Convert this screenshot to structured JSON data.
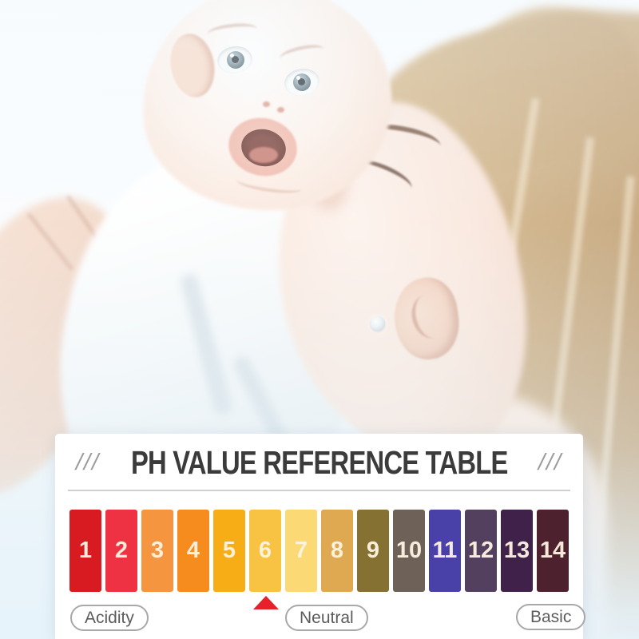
{
  "background_color": "#e7f3fa",
  "panel": {
    "background": "#ffffff",
    "decor_left": "///",
    "decor_right": "///",
    "title": "PH VALUE REFERENCE TABLE"
  },
  "ph_scale": {
    "swatches": [
      {
        "label": "1",
        "color": "#d81b21"
      },
      {
        "label": "2",
        "color": "#ee3143"
      },
      {
        "label": "3",
        "color": "#f5953f"
      },
      {
        "label": "4",
        "color": "#f68c1e"
      },
      {
        "label": "5",
        "color": "#f6ad16"
      },
      {
        "label": "6",
        "color": "#f8c342"
      },
      {
        "label": "7",
        "color": "#fbd975"
      },
      {
        "label": "8",
        "color": "#dfa951"
      },
      {
        "label": "9",
        "color": "#857233"
      },
      {
        "label": "10",
        "color": "#6e6158"
      },
      {
        "label": "11",
        "color": "#4a41a8"
      },
      {
        "label": "12",
        "color": "#53405e"
      },
      {
        "label": "13",
        "color": "#3f2149"
      },
      {
        "label": "14",
        "color": "#4d222e"
      }
    ],
    "pointer": {
      "icon": "triangle-up-icon",
      "color": "#e62129",
      "points_to_value": "6"
    },
    "zone_labels": {
      "acidity": "Acidity",
      "neutral": "Neutral",
      "basic": "Basic"
    }
  }
}
